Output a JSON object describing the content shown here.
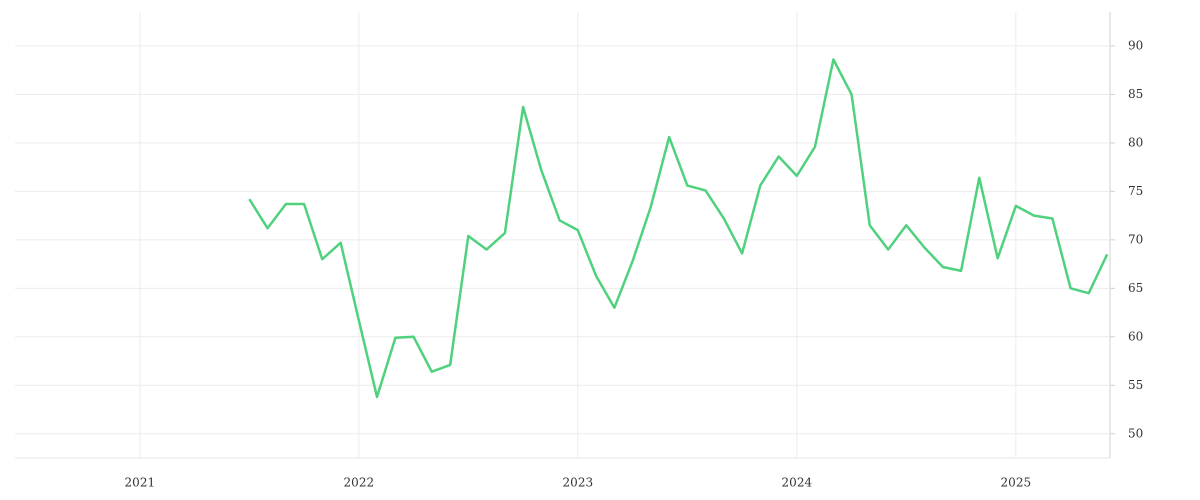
{
  "chart_data": {
    "type": "line",
    "x": [
      2021.5,
      2021.583,
      2021.667,
      2021.75,
      2021.833,
      2021.917,
      2022,
      2022.083,
      2022.167,
      2022.25,
      2022.333,
      2022.417,
      2022.5,
      2022.583,
      2022.667,
      2022.75,
      2022.833,
      2022.917,
      2023,
      2023.083,
      2023.167,
      2023.25,
      2023.333,
      2023.417,
      2023.5,
      2023.583,
      2023.667,
      2023.75,
      2023.833,
      2023.917,
      2024,
      2024.083,
      2024.167,
      2024.25,
      2024.333,
      2024.417,
      2024.5,
      2024.583,
      2024.667,
      2024.75,
      2024.833,
      2024.917,
      2025,
      2025.083,
      2025.167,
      2025.25,
      2025.333,
      2025.417
    ],
    "series": [
      {
        "color": "#4fd17e",
        "values": [
          74.2,
          71.2,
          73.7,
          73.7,
          68.0,
          69.7,
          61.7,
          53.8,
          59.9,
          60.0,
          56.4,
          57.1,
          70.4,
          69.0,
          70.7,
          83.7,
          77.2,
          72.0,
          71.0,
          66.3,
          63.0,
          67.8,
          73.4,
          80.6,
          75.6,
          75.1,
          72.2,
          68.6,
          75.6,
          78.6,
          76.6,
          79.6,
          88.6,
          85.0,
          71.5,
          69.0,
          71.5,
          69.2,
          67.2,
          66.8,
          76.4,
          68.1,
          73.5,
          72.5,
          72.2,
          65.0,
          64.5,
          68.5
        ]
      }
    ],
    "xlim": [
      2020.43,
      2025.43
    ],
    "xticks": [
      2021,
      2022,
      2023,
      2024,
      2025
    ],
    "ylim": [
      47.5,
      93.5
    ],
    "yticks": [
      50,
      55,
      60,
      65,
      70,
      75,
      80,
      85,
      90
    ],
    "grid": true,
    "y_axis_side": "right"
  }
}
